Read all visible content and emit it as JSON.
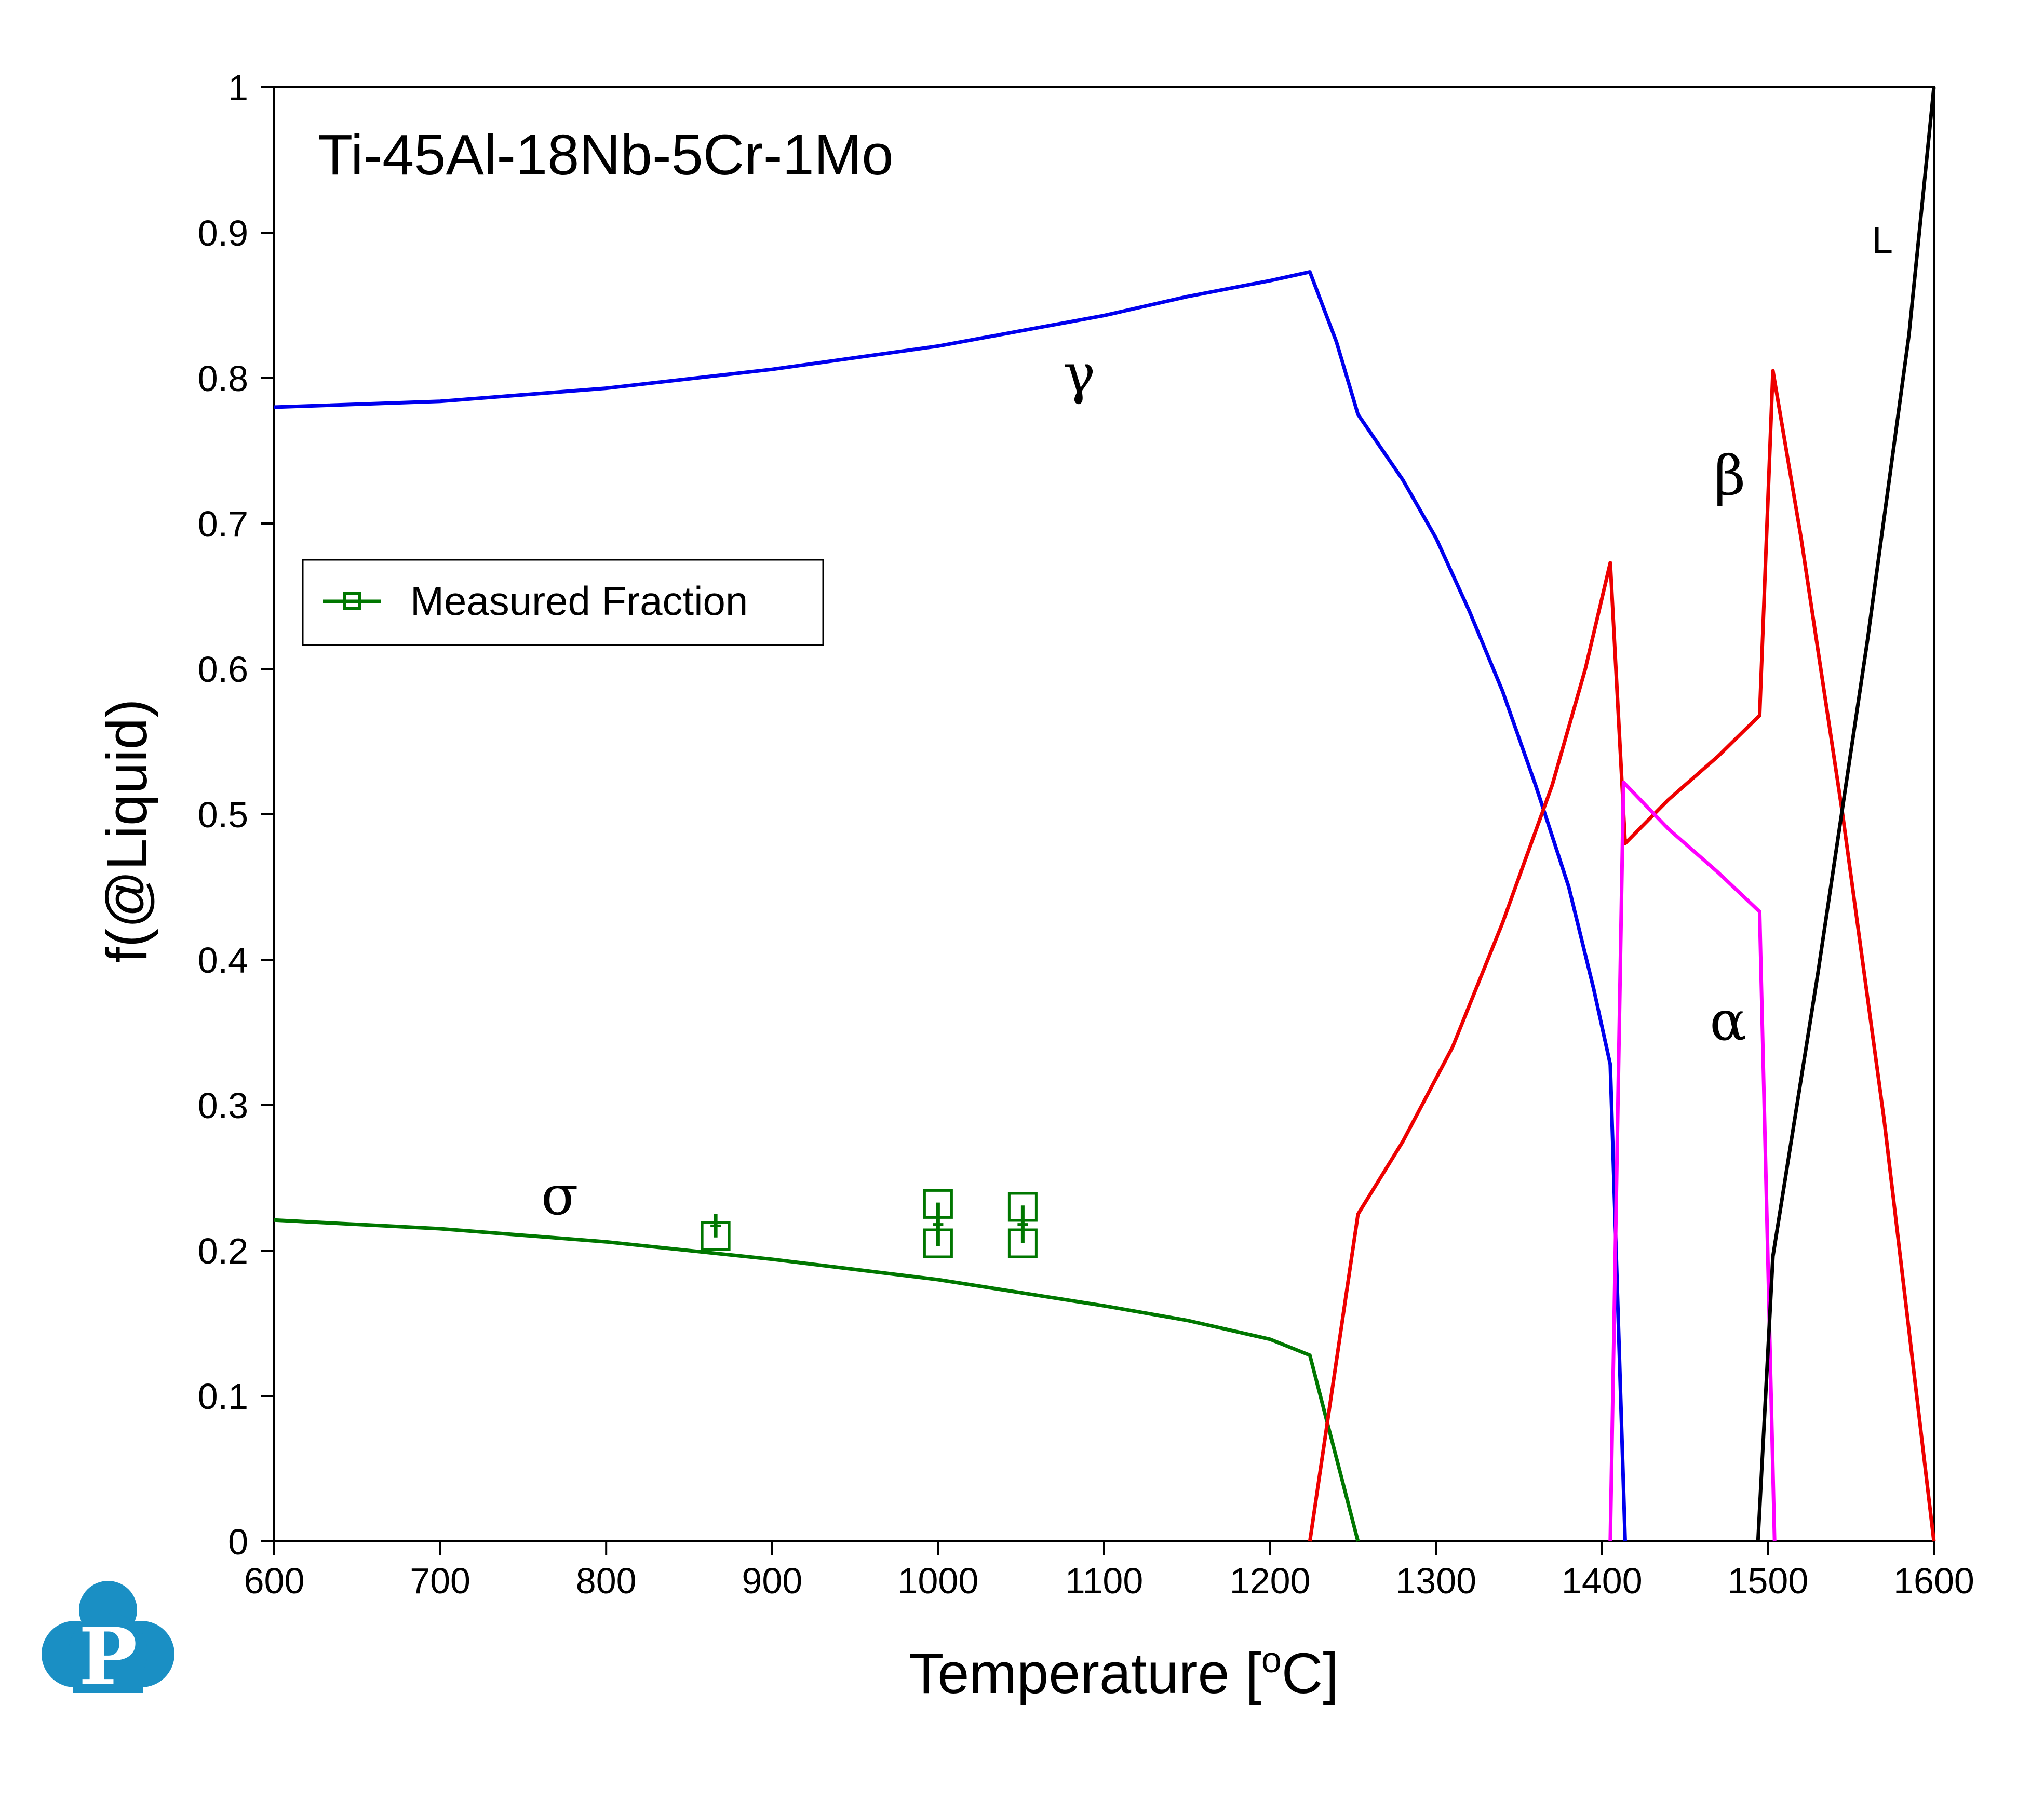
{
  "chart_data": {
    "type": "line",
    "title": "Ti-45Al-18Nb-5Cr-1Mo",
    "xlabel": "Temperature [",
    "xlabel_sup": "o",
    "xlabel_tail": "C]",
    "ylabel": "f(@Liquid)",
    "xlim": [
      600,
      1600
    ],
    "ylim": [
      0,
      1
    ],
    "xticks": [
      600,
      700,
      800,
      900,
      1000,
      1100,
      1200,
      1300,
      1400,
      1500,
      1600
    ],
    "yticks": [
      0,
      0.1,
      0.2,
      0.3,
      0.4,
      0.5,
      0.6,
      0.7,
      0.8,
      0.9,
      1
    ],
    "ytick_labels": [
      "0",
      "0.1",
      "0.2",
      "0.3",
      "0.4",
      "0.5",
      "0.6",
      "0.7",
      "0.8",
      "0.9",
      "1"
    ],
    "grid": false,
    "legend": {
      "placement": "upper-left",
      "entries": [
        "Measured Fraction"
      ]
    },
    "series": [
      {
        "label": "γ",
        "color": "#0000ee",
        "points": [
          [
            600,
            0.78
          ],
          [
            700,
            0.784
          ],
          [
            800,
            0.793
          ],
          [
            900,
            0.806
          ],
          [
            1000,
            0.822
          ],
          [
            1100,
            0.843
          ],
          [
            1150,
            0.856
          ],
          [
            1200,
            0.867
          ],
          [
            1224,
            0.873
          ],
          [
            1240,
            0.825
          ],
          [
            1253,
            0.775
          ],
          [
            1280,
            0.73
          ],
          [
            1300,
            0.69
          ],
          [
            1320,
            0.64
          ],
          [
            1340,
            0.585
          ],
          [
            1360,
            0.52
          ],
          [
            1380,
            0.45
          ],
          [
            1395,
            0.38
          ],
          [
            1405,
            0.328
          ],
          [
            1414,
            0.0
          ]
        ]
      },
      {
        "label": "σ",
        "color": "#007700",
        "points": [
          [
            600,
            0.221
          ],
          [
            700,
            0.215
          ],
          [
            800,
            0.206
          ],
          [
            900,
            0.194
          ],
          [
            1000,
            0.18
          ],
          [
            1100,
            0.162
          ],
          [
            1150,
            0.152
          ],
          [
            1200,
            0.139
          ],
          [
            1224,
            0.128
          ],
          [
            1253,
            0.0
          ]
        ]
      },
      {
        "label": "β",
        "color": "#ee0000",
        "points": [
          [
            1224,
            0.0
          ],
          [
            1253,
            0.225
          ],
          [
            1280,
            0.275
          ],
          [
            1310,
            0.34
          ],
          [
            1340,
            0.425
          ],
          [
            1370,
            0.52
          ],
          [
            1390,
            0.6
          ],
          [
            1405,
            0.673
          ],
          [
            1414,
            0.48
          ],
          [
            1440,
            0.51
          ],
          [
            1470,
            0.54
          ],
          [
            1495,
            0.568
          ],
          [
            1503,
            0.805
          ],
          [
            1520,
            0.69
          ],
          [
            1545,
            0.5
          ],
          [
            1570,
            0.29
          ],
          [
            1600,
            0.0
          ]
        ]
      },
      {
        "label": "α",
        "color": "#ff00ff",
        "points": [
          [
            1405,
            0.0
          ],
          [
            1413,
            0.522
          ],
          [
            1440,
            0.49
          ],
          [
            1470,
            0.46
          ],
          [
            1495,
            0.433
          ],
          [
            1504,
            0.0
          ]
        ]
      },
      {
        "label": "L",
        "color": "#000000",
        "points": [
          [
            1494,
            0.0
          ],
          [
            1503,
            0.196
          ],
          [
            1530,
            0.39
          ],
          [
            1560,
            0.62
          ],
          [
            1585,
            0.83
          ],
          [
            1600,
            1.0
          ]
        ]
      }
    ],
    "measured": {
      "name": "Measured Fraction",
      "color": "#007700",
      "points": [
        {
          "x": 866,
          "y": 0.217,
          "err": 0.008
        },
        {
          "x": 866,
          "y": 0.21,
          "err": 0.0
        },
        {
          "x": 1000,
          "y": 0.232,
          "err": 0.0
        },
        {
          "x": 1000,
          "y": 0.205,
          "err": 0.0
        },
        {
          "x": 1000,
          "y": 0.218,
          "err": 0.015
        },
        {
          "x": 1051,
          "y": 0.23,
          "err": 0.0
        },
        {
          "x": 1051,
          "y": 0.205,
          "err": 0.0
        },
        {
          "x": 1051,
          "y": 0.218,
          "err": 0.013
        }
      ]
    },
    "annotations": [
      {
        "text": "γ",
        "x": 1085,
        "y": 0.79
      },
      {
        "text": "σ",
        "x": 772,
        "y": 0.225
      },
      {
        "text": "β",
        "x": 1477,
        "y": 0.72
      },
      {
        "text": "α",
        "x": 1476,
        "y": 0.345
      },
      {
        "text": "L",
        "x": 1569,
        "y": 0.886
      }
    ]
  },
  "logo": {
    "icon": "pandat-p-logo-icon",
    "color": "#1a8fc4"
  }
}
